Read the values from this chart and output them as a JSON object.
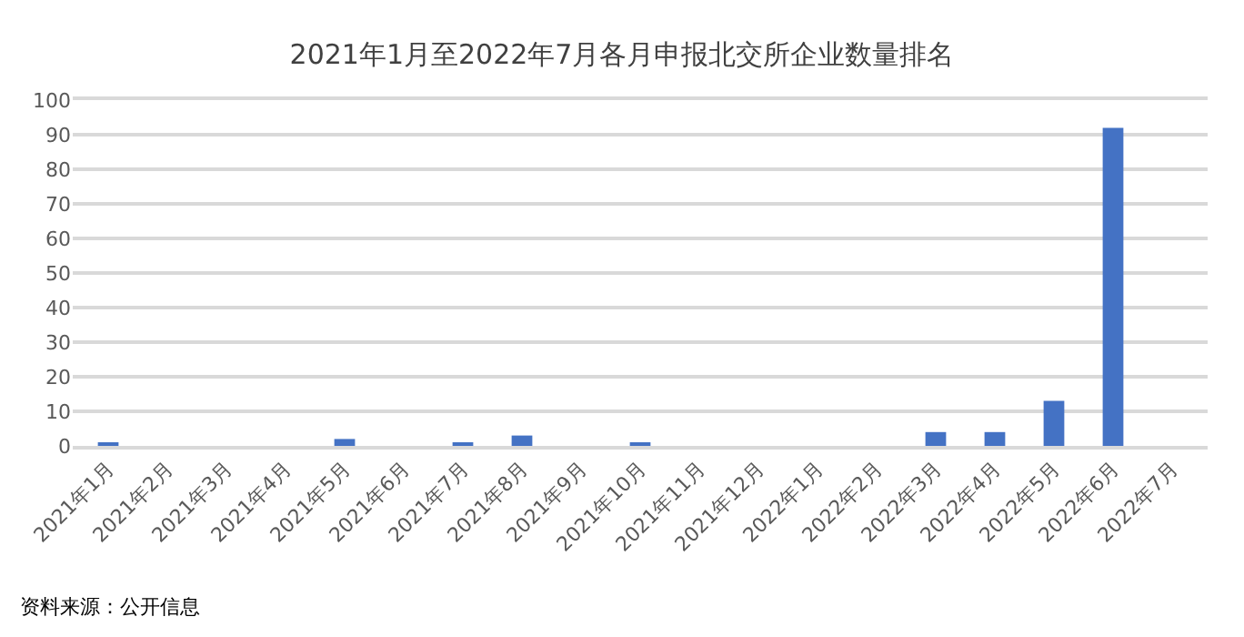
{
  "chart_data": {
    "type": "bar",
    "title": "2021年1月至2022年7月各月申报北交所企业数量排名",
    "categories": [
      "2021年1月",
      "2021年2月",
      "2021年3月",
      "2021年4月",
      "2021年5月",
      "2021年6月",
      "2021年7月",
      "2021年8月",
      "2021年9月",
      "2021年10月",
      "2021年11月",
      "2021年12月",
      "2022年1月",
      "2022年2月",
      "2022年3月",
      "2022年4月",
      "2022年5月",
      "2022年6月",
      "2022年7月"
    ],
    "values": [
      1,
      0,
      0,
      0,
      2,
      0,
      1,
      3,
      0,
      1,
      0,
      0,
      0,
      0,
      4,
      4,
      13,
      92,
      0
    ],
    "color": "#4472c4",
    "ylim": [
      0,
      100
    ],
    "yticks": [
      0,
      10,
      20,
      30,
      40,
      50,
      60,
      70,
      80,
      90,
      100
    ],
    "grid": "y",
    "annotations": [
      "资料来源：公开信息"
    ]
  }
}
